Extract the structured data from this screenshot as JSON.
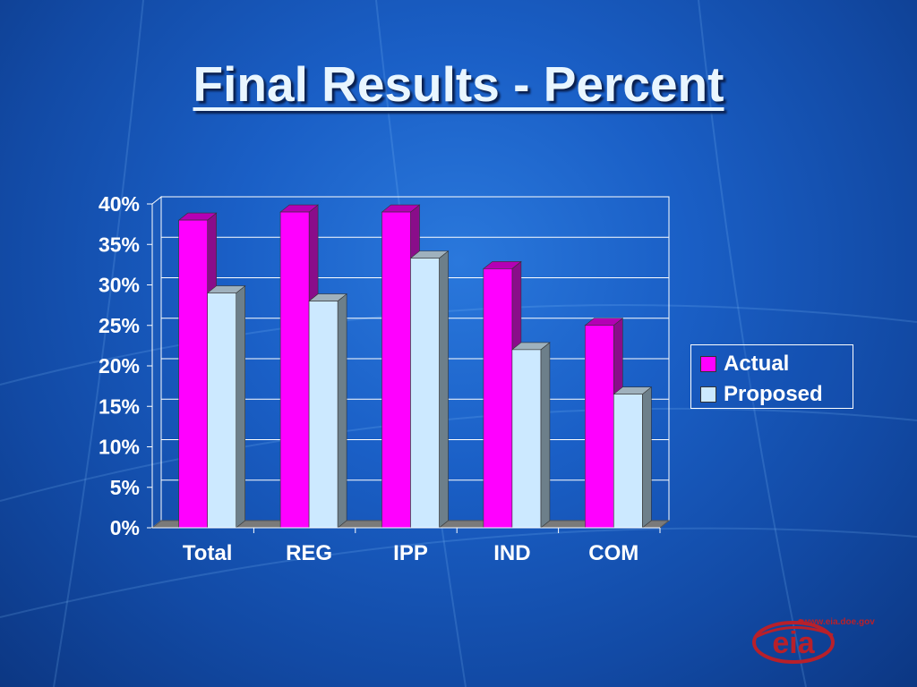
{
  "slide": {
    "title": "Final Results - Percent"
  },
  "chart_data": {
    "type": "bar",
    "categories": [
      "Total",
      "REG",
      "IPP",
      "IND",
      "COM"
    ],
    "series": [
      {
        "name": "Actual",
        "values": [
          38,
          39,
          39,
          32,
          25
        ],
        "color": "#ff00ff"
      },
      {
        "name": "Proposed",
        "values": [
          29,
          28,
          33.3,
          22,
          16.5
        ],
        "color": "#cce9ff"
      }
    ],
    "y_ticks": [
      "0%",
      "5%",
      "10%",
      "15%",
      "20%",
      "25%",
      "30%",
      "35%",
      "40%"
    ],
    "ylim": [
      0,
      40
    ],
    "y_format": "percent",
    "grid": true,
    "legend_position": "right",
    "style": "3d-columns"
  },
  "logo": {
    "text": "eia",
    "url_text": "www.eia.doe.gov"
  }
}
